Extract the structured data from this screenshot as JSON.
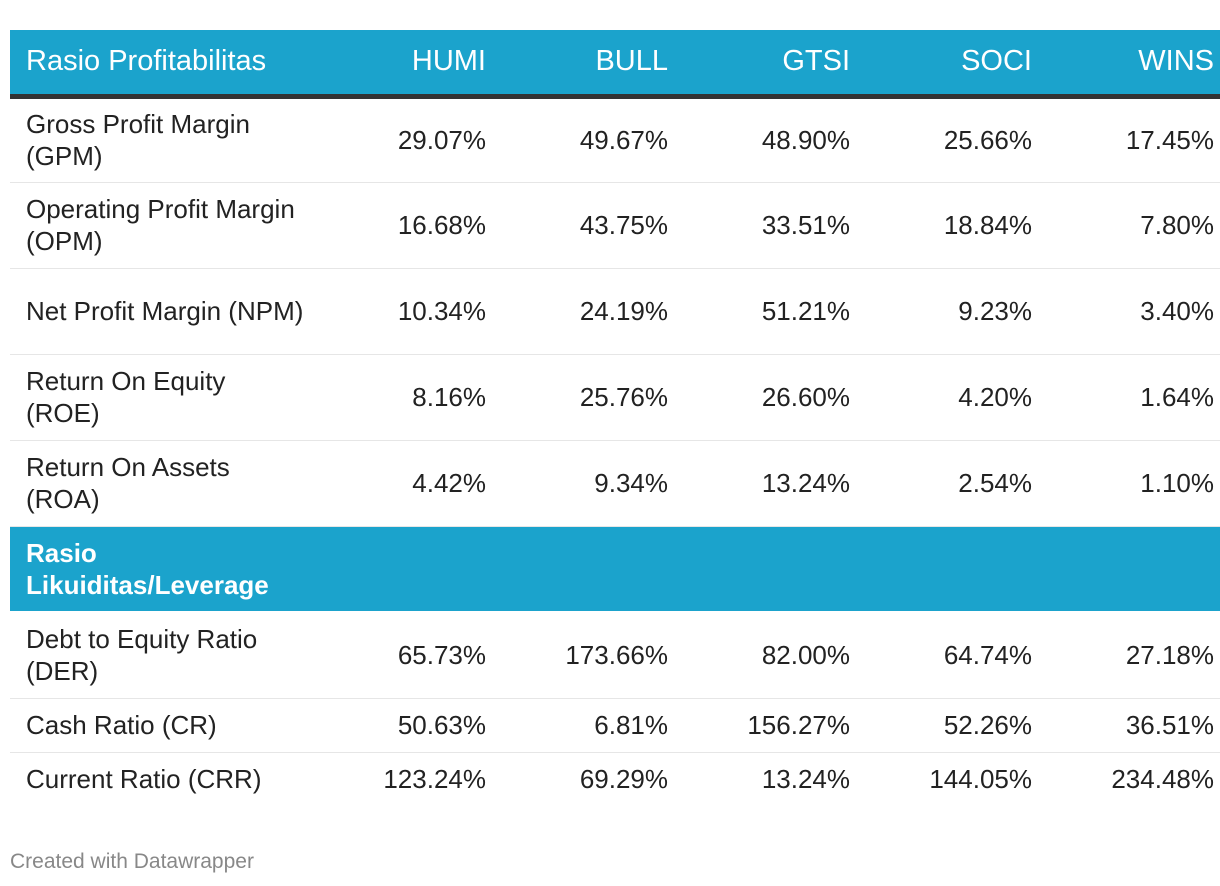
{
  "chart_data": {
    "type": "table",
    "columns": [
      "Rasio Profitabilitas",
      "HUMI",
      "BULL",
      "GTSI",
      "SOCI",
      "WINS"
    ],
    "section_1_rows": [
      {
        "label": "Gross Profit Margin (GPM)",
        "values": [
          "29.07%",
          "49.67%",
          "48.90%",
          "25.66%",
          "17.45%"
        ]
      },
      {
        "label": "Operating Profit Margin (OPM)",
        "values": [
          "16.68%",
          "43.75%",
          "33.51%",
          "18.84%",
          "7.80%"
        ]
      },
      {
        "label": "Net Profit Margin (NPM)",
        "values": [
          "10.34%",
          "24.19%",
          "51.21%",
          "9.23%",
          "3.40%"
        ]
      },
      {
        "label": "Return On Equity (ROE)",
        "values": [
          "8.16%",
          "25.76%",
          "26.60%",
          "4.20%",
          "1.64%"
        ]
      },
      {
        "label": "Return On Assets (ROA)",
        "values": [
          "4.42%",
          "9.34%",
          "13.24%",
          "2.54%",
          "1.10%"
        ]
      }
    ],
    "section_2_title": "Rasio Likuiditas/Leverage",
    "section_2_rows": [
      {
        "label": "Debt to Equity Ratio (DER)",
        "values": [
          "65.73%",
          "173.66%",
          "82.00%",
          "64.74%",
          "27.18%"
        ]
      },
      {
        "label": "Cash Ratio (CR)",
        "values": [
          "50.63%",
          "6.81%",
          "156.27%",
          "52.26%",
          "36.51%"
        ]
      },
      {
        "label": "Current Ratio (CRR)",
        "values": [
          "123.24%",
          "69.29%",
          "13.24%",
          "144.05%",
          "234.48%"
        ]
      }
    ]
  },
  "footer": "Created with Datawrapper",
  "colors": {
    "header_background": "#1ba3cc",
    "header_text": "#ffffff",
    "header_rule": "#333333",
    "row_divider": "#e6e6e6",
    "footer_text": "#888888"
  }
}
